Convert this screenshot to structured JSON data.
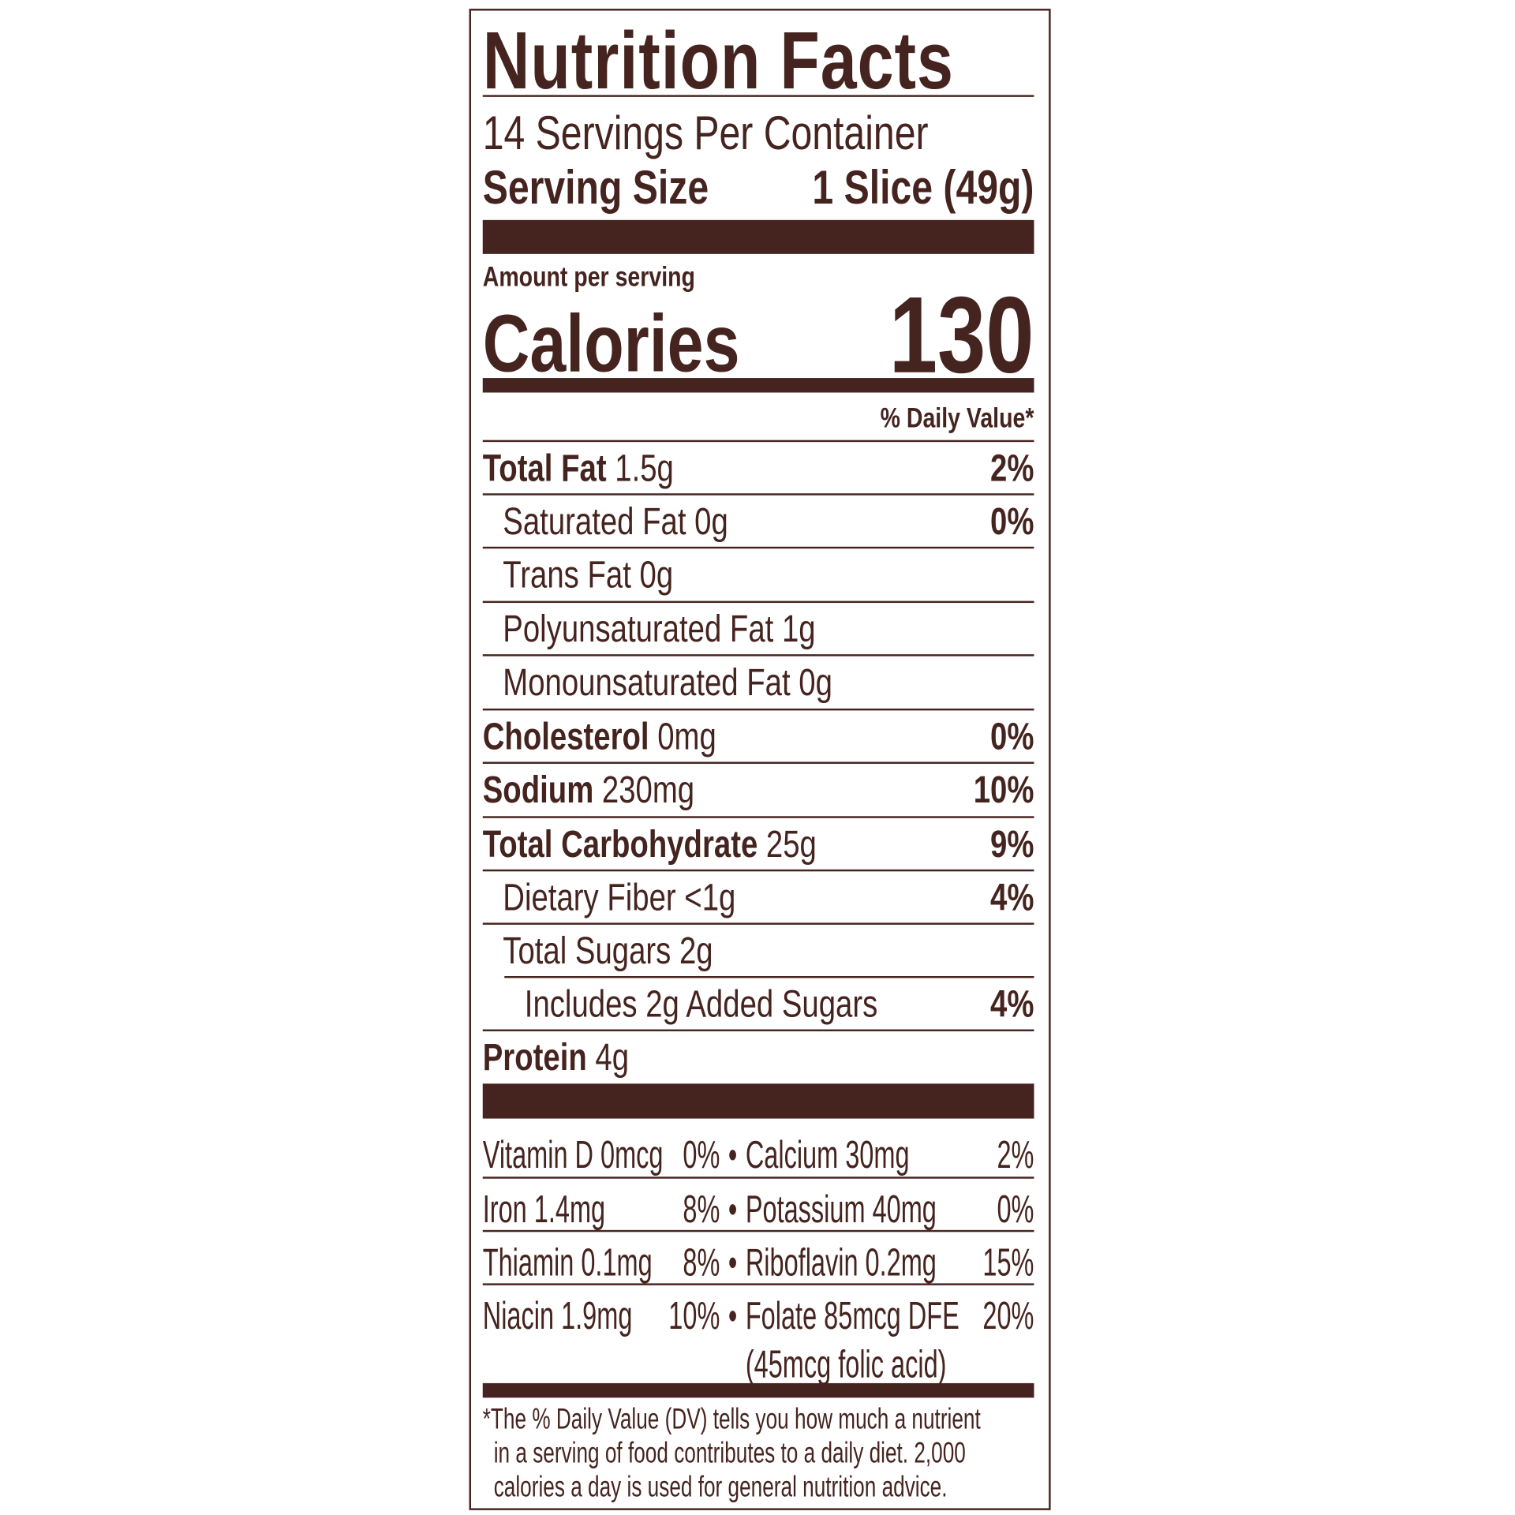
{
  "label": {
    "title": "Nutrition Facts",
    "servings_per_container": "14 Servings Per Container",
    "serving_size_label": "Serving Size",
    "serving_size_value": "1 Slice (49g)",
    "amount_per_serving": "Amount per serving",
    "calories_label": "Calories",
    "calories_value": "130",
    "daily_value_header": "% Daily Value*",
    "nutrients": [
      {
        "name": "Total Fat",
        "amount": "1.5g",
        "dv": "2%"
      },
      {
        "name": "Saturated Fat 0g",
        "dv": "0%"
      },
      {
        "name": "Trans Fat 0g"
      },
      {
        "name": "Polyunsaturated Fat 1g"
      },
      {
        "name": "Monounsaturated Fat 0g"
      },
      {
        "name": "Cholesterol",
        "amount": "0mg",
        "dv": "0%"
      },
      {
        "name": "Sodium",
        "amount": "230mg",
        "dv": "10%"
      },
      {
        "name": "Total Carbohydrate",
        "amount": "25g",
        "dv": "9%"
      },
      {
        "name": "Dietary Fiber <1g",
        "dv": "4%"
      },
      {
        "name": "Total Sugars 2g"
      },
      {
        "name": "Includes 2g Added Sugars",
        "dv": "4%"
      },
      {
        "name": "Protein",
        "amount": "4g"
      }
    ],
    "vitamins": [
      {
        "left_name": "Vitamin D 0mcg",
        "left_dv": "0%",
        "right_name": "Calcium 30mg",
        "right_dv": "2%"
      },
      {
        "left_name": "Iron 1.4mg",
        "left_dv": "8%",
        "right_name": "Potassium 40mg",
        "right_dv": "0%"
      },
      {
        "left_name": "Thiamin 0.1mg",
        "left_dv": "8%",
        "right_name": "Riboflavin 0.2mg",
        "right_dv": "15%"
      },
      {
        "left_name": "Niacin 1.9mg",
        "left_dv": "10%",
        "right_name": "Folate 85mcg DFE",
        "right_dv": "20%",
        "right_note": "(45mcg folic acid)"
      }
    ],
    "bullet": "•",
    "footnote_lines": [
      "*The % Daily Value (DV) tells you how much a nutrient",
      "in a serving of food contributes to a daily diet. 2,000",
      "calories a day is used for general nutrition advice."
    ],
    "colors": {
      "ink": "#45241f",
      "background": "#ffffff"
    }
  }
}
